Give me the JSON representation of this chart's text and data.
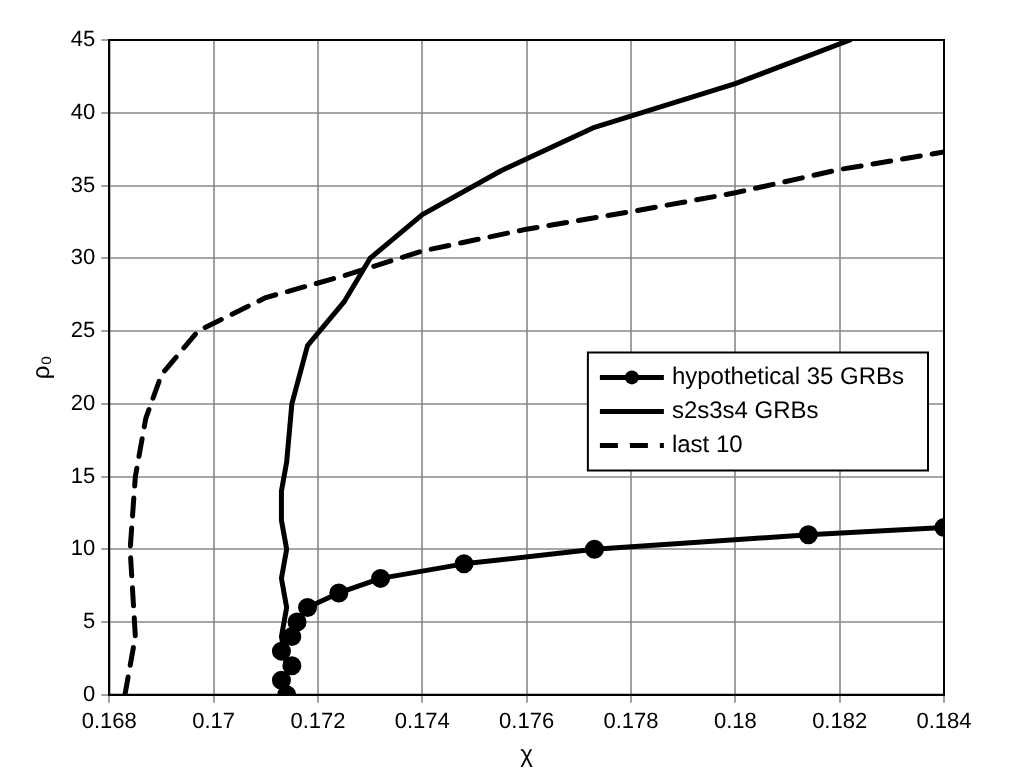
{
  "chart_data": {
    "type": "line",
    "xlabel": "χ",
    "ylabel": "ρ₀",
    "xlim": [
      0.168,
      0.184
    ],
    "xticks": [
      0.168,
      0.17,
      0.172,
      0.174,
      0.176,
      0.178,
      0.18,
      0.182,
      0.184
    ],
    "ylim": [
      0,
      45
    ],
    "yticks": [
      0,
      5,
      10,
      15,
      20,
      25,
      30,
      35,
      40,
      45
    ],
    "grid": true,
    "legend": "right",
    "series": [
      {
        "name": "hypothetical 35 GRBs",
        "color": "#000000",
        "marker": "circle",
        "line_style": "solid",
        "x": [
          0.1714,
          0.1713,
          0.1715,
          0.1713,
          0.1715,
          0.1716,
          0.1718,
          0.1724,
          0.1732,
          0.1748,
          0.1773,
          0.1814,
          0.184
        ],
        "values": [
          0,
          1,
          2,
          3,
          4,
          5,
          6,
          7,
          8,
          9,
          10,
          11,
          11.5
        ]
      },
      {
        "name": "s2s3s4 GRBs",
        "color": "#000000",
        "marker": "none",
        "line_style": "solid",
        "x": [
          0.1714,
          0.1713,
          0.1714,
          0.1713,
          0.1714,
          0.1713,
          0.1713,
          0.1714,
          0.1715,
          0.1718,
          0.1725,
          0.173,
          0.174,
          0.1755,
          0.1773,
          0.18,
          0.1822
        ],
        "values": [
          2,
          4,
          6,
          8,
          10,
          12,
          14,
          16,
          20,
          24,
          27,
          30,
          33,
          36,
          39,
          42,
          45
        ]
      },
      {
        "name": "last 10",
        "color": "#000000",
        "marker": "none",
        "line_style": "dashed",
        "x": [
          0.1683,
          0.1685,
          0.1684,
          0.1685,
          0.1687,
          0.169,
          0.1697,
          0.171,
          0.1725,
          0.174,
          0.176,
          0.178,
          0.18,
          0.182,
          0.184
        ],
        "values": [
          0,
          4,
          10,
          15,
          19,
          22,
          25,
          27.3,
          28.8,
          30.5,
          32,
          33.2,
          34.5,
          36.1,
          37.3
        ]
      }
    ]
  }
}
